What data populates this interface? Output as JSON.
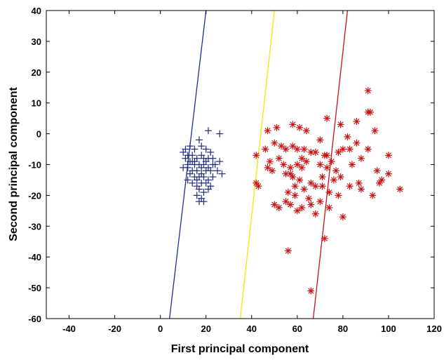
{
  "chart_data": {
    "type": "scatter",
    "title": "",
    "xlabel": "First principal component",
    "ylabel": "Second principal component",
    "xlim": [
      -50,
      120
    ],
    "ylim": [
      -60,
      40
    ],
    "xticks": [
      -40,
      -20,
      0,
      20,
      40,
      60,
      80,
      100,
      120
    ],
    "yticks": [
      40,
      30,
      20,
      10,
      0,
      -10,
      -20,
      -30,
      -40,
      -50,
      -60
    ],
    "grid": false,
    "legend": "none",
    "series": [
      {
        "marker": "plus",
        "color": "#1f2a7a",
        "points": [
          [
            21,
            1
          ],
          [
            26,
            0
          ],
          [
            17,
            -2
          ],
          [
            11,
            -5
          ],
          [
            13,
            -4
          ],
          [
            15,
            -5
          ],
          [
            18,
            -4
          ],
          [
            20,
            -5
          ],
          [
            22,
            -6
          ],
          [
            10,
            -6
          ],
          [
            12,
            -7
          ],
          [
            14,
            -7
          ],
          [
            16,
            -8
          ],
          [
            18,
            -7
          ],
          [
            19,
            -8
          ],
          [
            21,
            -8
          ],
          [
            23,
            -8
          ],
          [
            11,
            -8
          ],
          [
            13,
            -9
          ],
          [
            15,
            -10
          ],
          [
            17,
            -10
          ],
          [
            19,
            -10
          ],
          [
            21,
            -11
          ],
          [
            24,
            -10
          ],
          [
            26,
            -9
          ],
          [
            10,
            -11
          ],
          [
            12,
            -11
          ],
          [
            14,
            -12
          ],
          [
            16,
            -12
          ],
          [
            18,
            -11
          ],
          [
            20,
            -12
          ],
          [
            22,
            -12
          ],
          [
            25,
            -12
          ],
          [
            27,
            -13
          ],
          [
            13,
            -13
          ],
          [
            15,
            -14
          ],
          [
            17,
            -14
          ],
          [
            19,
            -14
          ],
          [
            21,
            -15
          ],
          [
            23,
            -14
          ],
          [
            12,
            -15
          ],
          [
            14,
            -16
          ],
          [
            16,
            -17
          ],
          [
            18,
            -16
          ],
          [
            20,
            -16
          ],
          [
            22,
            -17
          ],
          [
            17,
            -18
          ],
          [
            19,
            -19
          ],
          [
            21,
            -18
          ],
          [
            16,
            -20
          ],
          [
            18,
            -21
          ],
          [
            17,
            -22
          ],
          [
            19,
            -22
          ],
          [
            15,
            -9
          ],
          [
            20,
            -9
          ],
          [
            23,
            -10
          ],
          [
            12,
            -10
          ],
          [
            14,
            -9
          ],
          [
            18,
            -13
          ],
          [
            16,
            -15
          ]
        ]
      },
      {
        "marker": "asterisk",
        "color": "#cc1111",
        "points": [
          [
            91,
            14
          ],
          [
            92,
            7
          ],
          [
            91,
            7
          ],
          [
            73,
            5
          ],
          [
            86,
            4
          ],
          [
            79,
            3
          ],
          [
            47,
            1
          ],
          [
            51,
            2
          ],
          [
            58,
            3
          ],
          [
            61,
            2
          ],
          [
            64,
            1
          ],
          [
            94,
            1
          ],
          [
            82,
            -1
          ],
          [
            70,
            -2
          ],
          [
            80,
            -5
          ],
          [
            86,
            -3
          ],
          [
            91,
            -5
          ],
          [
            46,
            -5
          ],
          [
            50,
            -3
          ],
          [
            53,
            -4
          ],
          [
            55,
            -5
          ],
          [
            58,
            -4
          ],
          [
            60,
            -5
          ],
          [
            63,
            -5
          ],
          [
            66,
            -6
          ],
          [
            68,
            -6
          ],
          [
            72,
            -7
          ],
          [
            75,
            -9
          ],
          [
            78,
            -6
          ],
          [
            42,
            -7
          ],
          [
            48,
            -9
          ],
          [
            52,
            -8
          ],
          [
            54,
            -10
          ],
          [
            57,
            -11
          ],
          [
            60,
            -10
          ],
          [
            62,
            -11
          ],
          [
            64,
            -9
          ],
          [
            70,
            -10
          ],
          [
            73,
            -11
          ],
          [
            77,
            -12
          ],
          [
            84,
            -10
          ],
          [
            88,
            -8
          ],
          [
            95,
            -12
          ],
          [
            100,
            -7
          ],
          [
            49,
            -12
          ],
          [
            55,
            -13
          ],
          [
            58,
            -14
          ],
          [
            61,
            -15
          ],
          [
            66,
            -16
          ],
          [
            71,
            -14
          ],
          [
            76,
            -15
          ],
          [
            79,
            -14
          ],
          [
            83,
            -17
          ],
          [
            87,
            -16
          ],
          [
            97,
            -15
          ],
          [
            96,
            -16
          ],
          [
            100,
            -13
          ],
          [
            105,
            -18
          ],
          [
            43,
            -17
          ],
          [
            42,
            -16
          ],
          [
            56,
            -19
          ],
          [
            59,
            -20
          ],
          [
            63,
            -18
          ],
          [
            68,
            -17
          ],
          [
            74,
            -19
          ],
          [
            78,
            -20
          ],
          [
            88,
            -18
          ],
          [
            93,
            -20
          ],
          [
            50,
            -23
          ],
          [
            52,
            -24
          ],
          [
            55,
            -22
          ],
          [
            57,
            -23
          ],
          [
            62,
            -24
          ],
          [
            66,
            -23
          ],
          [
            70,
            -22
          ],
          [
            74,
            -24
          ],
          [
            60,
            -25
          ],
          [
            68,
            -26
          ],
          [
            80,
            -27
          ],
          [
            72,
            -34
          ],
          [
            56,
            -38
          ],
          [
            66,
            -51
          ],
          [
            57,
            -13
          ],
          [
            71,
            -17
          ],
          [
            73,
            -7
          ],
          [
            62,
            -8
          ],
          [
            47,
            -11
          ],
          [
            83,
            -5
          ],
          [
            59,
            -17
          ],
          [
            65,
            -21
          ]
        ]
      }
    ],
    "lines": [
      {
        "color": "#1f2a9a",
        "points": [
          [
            4,
            -60
          ],
          [
            20,
            40
          ]
        ]
      },
      {
        "color": "#ffe100",
        "points": [
          [
            35,
            -60
          ],
          [
            50,
            40
          ]
        ]
      },
      {
        "color": "#cc1111",
        "points": [
          [
            67,
            -60
          ],
          [
            82,
            40
          ]
        ]
      }
    ]
  }
}
